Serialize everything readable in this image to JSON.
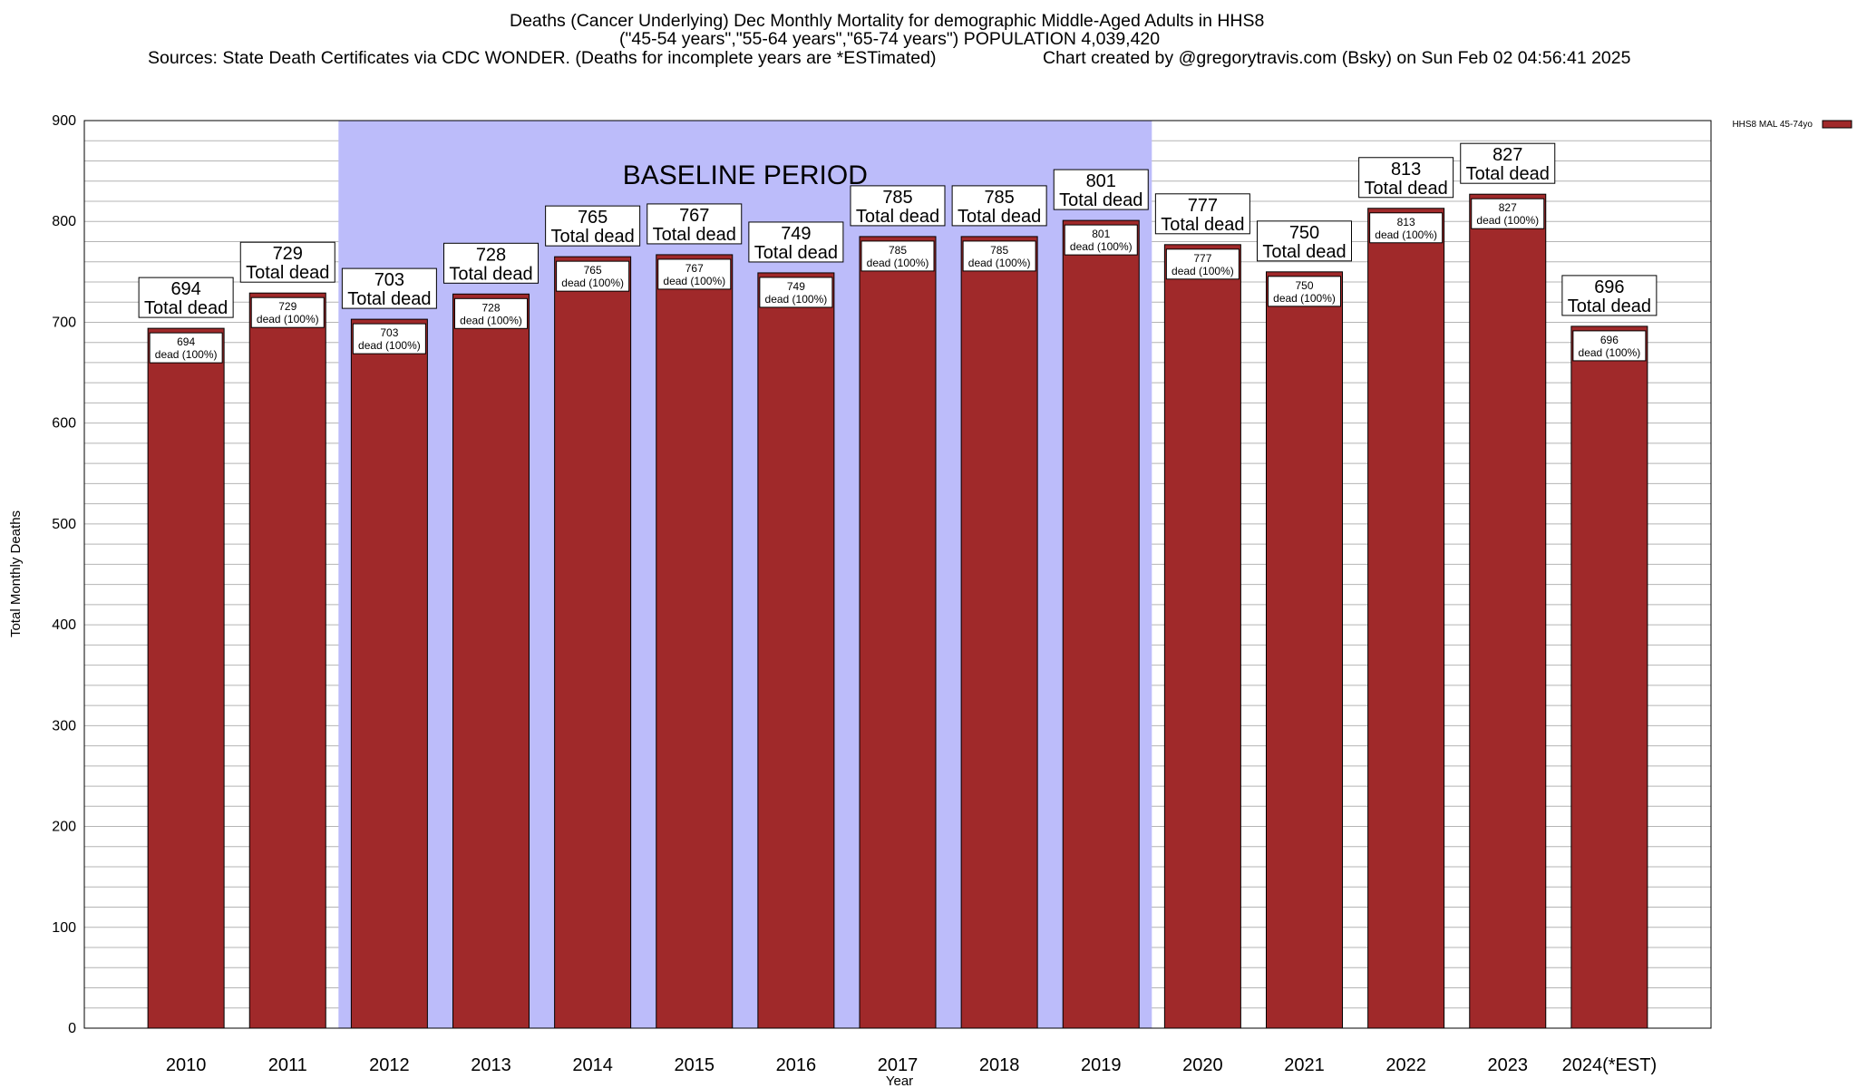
{
  "title": {
    "line1": "Deaths (Cancer Underlying) Dec Monthly Mortality for demographic Middle-Aged Adults in HHS8",
    "line2": "(\"45-54 years\",\"55-64 years\",\"65-74 years\") POPULATION 4,039,420",
    "line3_left": "Sources: State Death Certificates via CDC WONDER. (Deaths for incomplete years are *ESTimated)",
    "line3_right": "Chart created by @gregorytravis.com (Bsky) on Sun Feb 02 04:56:41 2025"
  },
  "colors": {
    "bar": "#a0292a",
    "baseline_shade": "#bcbcfa",
    "grid": "#b4b4b4"
  },
  "chart_data": {
    "type": "bar",
    "categories": [
      "2010",
      "2011",
      "2012",
      "2013",
      "2014",
      "2015",
      "2016",
      "2017",
      "2018",
      "2019",
      "2020",
      "2021",
      "2022",
      "2023",
      "2024(*EST)"
    ],
    "series": [
      {
        "name": "HHS8 MAL 45-74yo",
        "values": [
          694,
          729,
          703,
          728,
          765,
          767,
          749,
          785,
          785,
          801,
          777,
          750,
          813,
          827,
          696
        ]
      }
    ],
    "xlabel": "Year",
    "ylabel": "Total Monthly Deaths",
    "ylim": [
      0,
      900
    ],
    "yticks": [
      0,
      100,
      200,
      300,
      400,
      500,
      600,
      700,
      800,
      900
    ],
    "grid": true,
    "legend_position": "top-right",
    "baseline_period": {
      "label": "BASELINE PERIOD",
      "from_category": "2012",
      "to_category": "2019"
    },
    "top_label_text": "Total dead",
    "inner_label_text": "dead (100%)"
  }
}
